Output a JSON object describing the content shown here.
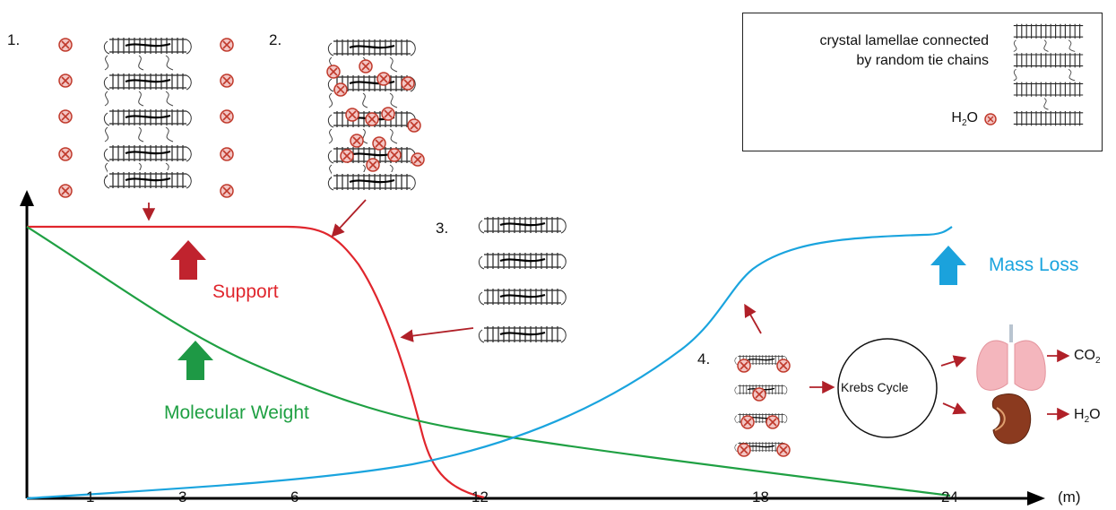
{
  "steps": [
    "1.",
    "2.",
    "3.",
    "4."
  ],
  "legend": {
    "line1": "crystal lamellae connected",
    "line2": "by random tie chains",
    "water_label": "H",
    "water_sub": "2",
    "water_tail": "O"
  },
  "labels": {
    "support": "Support",
    "molecular_weight": "Molecular Weight",
    "mass_loss": "Mass Loss",
    "krebs": "Krebs Cycle",
    "co2_main": "CO",
    "co2_sub": "2",
    "h2o_main": "H",
    "h2o_sub": "2",
    "h2o_tail": "O"
  },
  "axis": {
    "ticks": [
      "1",
      "3",
      "6",
      "12",
      "18",
      "24"
    ],
    "unit": "(m)"
  },
  "colors": {
    "support": "#e0262d",
    "molecular_weight": "#1fa043",
    "mass_loss": "#1aa4de",
    "pointer": "#b02028",
    "water_marker": "#d9534f"
  },
  "icons": [
    "lamellae-icon",
    "water-molecule-icon",
    "lungs-icon",
    "kidney-icon"
  ]
}
